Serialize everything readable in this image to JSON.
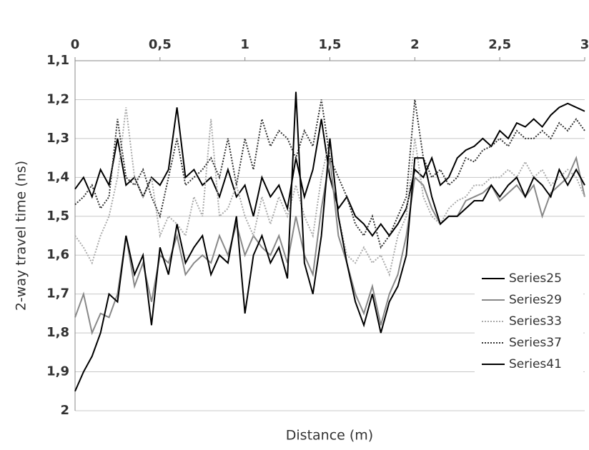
{
  "chart_data": {
    "type": "line",
    "x_label": "Distance (m)",
    "y_label": "2-way travel time (ns)",
    "x": [
      0,
      0.05,
      0.1,
      0.15,
      0.2,
      0.25,
      0.3,
      0.35,
      0.4,
      0.45,
      0.5,
      0.55,
      0.6,
      0.65,
      0.7,
      0.75,
      0.8,
      0.85,
      0.9,
      0.95,
      1,
      1.05,
      1.1,
      1.15,
      1.2,
      1.25,
      1.3,
      1.35,
      1.4,
      1.45,
      1.5,
      1.55,
      1.6,
      1.65,
      1.7,
      1.75,
      1.8,
      1.85,
      1.9,
      1.95,
      2,
      2.05,
      2.1,
      2.15,
      2.2,
      2.25,
      2.3,
      2.35,
      2.4,
      2.45,
      2.5,
      2.55,
      2.6,
      2.65,
      2.7,
      2.75,
      2.8,
      2.85,
      2.9,
      2.95,
      3
    ],
    "xlim": [
      0,
      3
    ],
    "xticks": [
      0,
      {
        "value": 0.5,
        "label": "0,5"
      },
      1,
      {
        "value": 1.5,
        "label": "1,5"
      },
      2,
      {
        "value": 2.5,
        "label": "2,5"
      },
      3
    ],
    "ylim": [
      2,
      1.1
    ],
    "yticks": [
      {
        "value": 1.1,
        "label": "1,1"
      },
      {
        "value": 1.2,
        "label": "1,2"
      },
      {
        "value": 1.3,
        "label": "1,3"
      },
      {
        "value": 1.4,
        "label": "1,4"
      },
      {
        "value": 1.5,
        "label": "1,5"
      },
      {
        "value": 1.6,
        "label": "1,6"
      },
      {
        "value": 1.7,
        "label": "1,7"
      },
      {
        "value": 1.8,
        "label": "1,8"
      },
      {
        "value": 1.9,
        "label": "1,9"
      },
      2
    ],
    "grid": true,
    "legend": "right",
    "series": [
      {
        "name": "Series25",
        "color": "#000000",
        "dash": "solid",
        "values": [
          1.43,
          1.4,
          1.45,
          1.38,
          1.42,
          1.3,
          1.42,
          1.4,
          1.45,
          1.4,
          1.42,
          1.38,
          1.22,
          1.4,
          1.38,
          1.42,
          1.4,
          1.45,
          1.38,
          1.45,
          1.42,
          1.5,
          1.4,
          1.45,
          1.42,
          1.48,
          1.35,
          1.45,
          1.38,
          1.25,
          1.4,
          1.48,
          1.45,
          1.5,
          1.52,
          1.55,
          1.52,
          1.55,
          1.52,
          1.48,
          1.38,
          1.4,
          1.35,
          1.42,
          1.4,
          1.35,
          1.33,
          1.32,
          1.3,
          1.32,
          1.28,
          1.3,
          1.26,
          1.27,
          1.25,
          1.27,
          1.24,
          1.22,
          1.21,
          1.22,
          1.23
        ]
      },
      {
        "name": "Series29",
        "color": "#888888",
        "dash": "solid",
        "values": [
          1.76,
          1.7,
          1.8,
          1.75,
          1.76,
          1.7,
          1.55,
          1.68,
          1.62,
          1.72,
          1.6,
          1.62,
          1.55,
          1.65,
          1.62,
          1.6,
          1.62,
          1.55,
          1.6,
          1.52,
          1.6,
          1.55,
          1.58,
          1.6,
          1.55,
          1.62,
          1.5,
          1.6,
          1.65,
          1.48,
          1.35,
          1.55,
          1.62,
          1.7,
          1.75,
          1.68,
          1.78,
          1.7,
          1.65,
          1.55,
          1.4,
          1.42,
          1.48,
          1.52,
          1.5,
          1.5,
          1.46,
          1.45,
          1.44,
          1.42,
          1.46,
          1.44,
          1.42,
          1.45,
          1.42,
          1.5,
          1.44,
          1.42,
          1.4,
          1.35,
          1.45
        ]
      },
      {
        "name": "Series33",
        "color": "#aaaaaa",
        "dash": "dotted",
        "values": [
          1.55,
          1.58,
          1.62,
          1.55,
          1.5,
          1.4,
          1.22,
          1.4,
          1.45,
          1.4,
          1.55,
          1.5,
          1.52,
          1.55,
          1.45,
          1.5,
          1.25,
          1.5,
          1.48,
          1.42,
          1.5,
          1.55,
          1.45,
          1.52,
          1.45,
          1.5,
          1.42,
          1.5,
          1.55,
          1.4,
          1.3,
          1.5,
          1.6,
          1.62,
          1.58,
          1.62,
          1.6,
          1.65,
          1.55,
          1.5,
          1.3,
          1.45,
          1.5,
          1.52,
          1.48,
          1.46,
          1.45,
          1.42,
          1.42,
          1.4,
          1.4,
          1.38,
          1.4,
          1.36,
          1.4,
          1.38,
          1.42,
          1.4,
          1.38,
          1.4,
          1.45
        ]
      },
      {
        "name": "Series37",
        "color": "#333333",
        "dash": "dotted",
        "values": [
          1.47,
          1.45,
          1.42,
          1.48,
          1.45,
          1.25,
          1.4,
          1.42,
          1.38,
          1.45,
          1.5,
          1.4,
          1.3,
          1.42,
          1.4,
          1.38,
          1.35,
          1.4,
          1.3,
          1.42,
          1.3,
          1.38,
          1.25,
          1.32,
          1.28,
          1.3,
          1.35,
          1.28,
          1.32,
          1.2,
          1.35,
          1.4,
          1.45,
          1.52,
          1.55,
          1.5,
          1.58,
          1.55,
          1.5,
          1.45,
          1.2,
          1.35,
          1.4,
          1.38,
          1.42,
          1.4,
          1.35,
          1.36,
          1.33,
          1.32,
          1.3,
          1.32,
          1.28,
          1.3,
          1.3,
          1.28,
          1.3,
          1.26,
          1.28,
          1.25,
          1.28
        ]
      },
      {
        "name": "Series41",
        "color": "#000000",
        "dash": "solid",
        "values": [
          1.95,
          1.9,
          1.86,
          1.8,
          1.7,
          1.72,
          1.55,
          1.65,
          1.6,
          1.78,
          1.58,
          1.65,
          1.52,
          1.62,
          1.58,
          1.55,
          1.65,
          1.6,
          1.62,
          1.5,
          1.75,
          1.6,
          1.55,
          1.62,
          1.58,
          1.66,
          1.18,
          1.62,
          1.7,
          1.55,
          1.3,
          1.5,
          1.62,
          1.72,
          1.78,
          1.7,
          1.8,
          1.72,
          1.68,
          1.6,
          1.35,
          1.35,
          1.45,
          1.52,
          1.5,
          1.5,
          1.48,
          1.46,
          1.46,
          1.42,
          1.45,
          1.42,
          1.4,
          1.45,
          1.4,
          1.42,
          1.45,
          1.38,
          1.42,
          1.38,
          1.42
        ]
      }
    ]
  }
}
